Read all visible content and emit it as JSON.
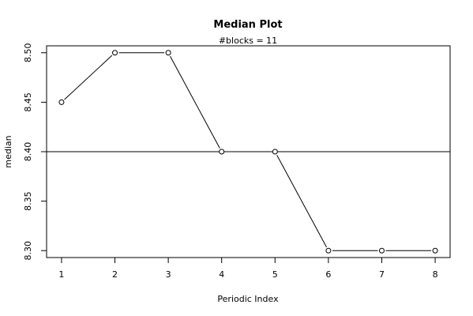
{
  "chart_data": {
    "type": "line",
    "title": "Median Plot",
    "subtitle": "#blocks =  11",
    "xlabel": "Periodic Index",
    "ylabel": "median",
    "x": [
      1,
      2,
      3,
      4,
      5,
      6,
      7,
      8
    ],
    "values": [
      8.45,
      8.5,
      8.5,
      8.4,
      8.4,
      8.3,
      8.3,
      8.3
    ],
    "xlim": [
      0.72,
      8.28
    ],
    "ylim": [
      8.293,
      8.507
    ],
    "xticks": [
      "1",
      "2",
      "3",
      "4",
      "5",
      "6",
      "7",
      "8"
    ],
    "yticks": [
      "8.30",
      "8.35",
      "8.40",
      "8.45",
      "8.50"
    ],
    "reference_line": 8.4,
    "markers": "open-circle",
    "grid": false
  }
}
